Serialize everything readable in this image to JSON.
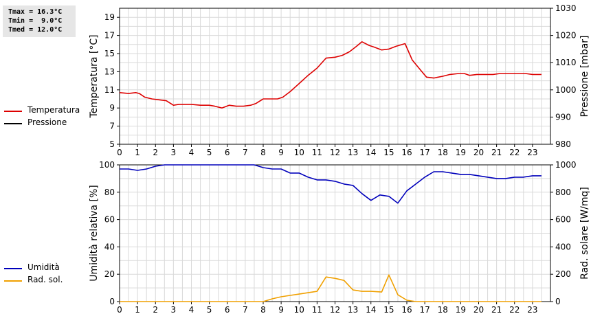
{
  "stats": {
    "tmax": "Tmax = 16.3°C",
    "tmin": "Tmin =  9.0°C",
    "tmed": "Tmed = 12.0°C"
  },
  "legend_top": [
    {
      "label": "Temperatura",
      "color": "#dd0000"
    },
    {
      "label": "Pressione",
      "color": "#000000"
    }
  ],
  "legend_bottom": [
    {
      "label": "Umidità",
      "color": "#0000bb"
    },
    {
      "label": "Rad. sol.",
      "color": "#f0a000"
    }
  ],
  "chart_data": [
    {
      "type": "line",
      "ylabel": "Temperatura [°C]",
      "y2label": "Pressione [mbar]",
      "xlim": [
        0,
        24
      ],
      "ylim": [
        5,
        20
      ],
      "y2lim": [
        980,
        1030
      ],
      "xticks": [
        0,
        1,
        2,
        3,
        4,
        5,
        6,
        7,
        8,
        9,
        10,
        11,
        12,
        13,
        14,
        15,
        16,
        17,
        18,
        19,
        20,
        21,
        22,
        23
      ],
      "yticks": [
        5,
        7,
        9,
        11,
        13,
        15,
        17,
        19
      ],
      "y2ticks": [
        980,
        990,
        1000,
        1010,
        1020,
        1030
      ],
      "grid": true,
      "series": [
        {
          "name": "Temperatura",
          "color": "#dd0000",
          "axis": "left",
          "x": [
            0,
            0.5,
            0.9,
            1.1,
            1.4,
            1.8,
            2.2,
            2.6,
            3.0,
            3.3,
            3.7,
            4.0,
            4.5,
            5.0,
            5.3,
            5.7,
            6.1,
            6.5,
            6.9,
            7.3,
            7.6,
            8.0,
            8.5,
            8.8,
            9.1,
            9.5,
            10.0,
            10.5,
            11.0,
            11.5,
            12.0,
            12.4,
            12.8,
            13.2,
            13.5,
            13.9,
            14.2,
            14.6,
            15.0,
            15.4,
            15.9,
            16.3,
            16.8,
            17.1,
            17.5,
            18.0,
            18.4,
            18.9,
            19.2,
            19.5,
            19.9,
            20.3,
            20.8,
            21.2,
            21.6,
            22.1,
            22.6,
            23.0,
            23.5
          ],
          "y": [
            10.7,
            10.6,
            10.7,
            10.6,
            10.2,
            10.0,
            9.9,
            9.8,
            9.3,
            9.4,
            9.4,
            9.4,
            9.3,
            9.3,
            9.2,
            9.0,
            9.3,
            9.2,
            9.2,
            9.3,
            9.5,
            10.0,
            10.0,
            10.0,
            10.2,
            10.8,
            11.7,
            12.6,
            13.4,
            14.5,
            14.6,
            14.8,
            15.2,
            15.8,
            16.3,
            15.9,
            15.7,
            15.4,
            15.5,
            15.8,
            16.1,
            14.3,
            13.1,
            12.4,
            12.3,
            12.5,
            12.7,
            12.8,
            12.8,
            12.6,
            12.7,
            12.7,
            12.7,
            12.8,
            12.8,
            12.8,
            12.8,
            12.7,
            12.7
          ]
        }
      ]
    },
    {
      "type": "line",
      "ylabel": "Umidità relativa [%]",
      "y2label": "Rad. solare [W/mq]",
      "xlim": [
        0,
        24
      ],
      "ylim": [
        0,
        100
      ],
      "y2lim": [
        0,
        1000
      ],
      "xticks": [
        0,
        1,
        2,
        3,
        4,
        5,
        6,
        7,
        8,
        9,
        10,
        11,
        12,
        13,
        14,
        15,
        16,
        17,
        18,
        19,
        20,
        21,
        22,
        23
      ],
      "yticks": [
        0,
        20,
        40,
        60,
        80,
        100
      ],
      "y2ticks": [
        0,
        200,
        400,
        600,
        800,
        1000
      ],
      "grid": true,
      "series": [
        {
          "name": "Umidità",
          "color": "#0000bb",
          "axis": "left",
          "x": [
            0,
            0.5,
            1.0,
            1.5,
            2.0,
            2.5,
            3.0,
            4.0,
            5.0,
            6.0,
            7.0,
            7.5,
            8.0,
            8.5,
            9.0,
            9.5,
            10.0,
            10.5,
            11.0,
            11.5,
            12.0,
            12.5,
            13.0,
            13.5,
            14.0,
            14.5,
            15.0,
            15.5,
            16.0,
            16.5,
            17.0,
            17.5,
            18.0,
            18.5,
            19.0,
            19.5,
            20.0,
            20.5,
            21.0,
            21.5,
            22.0,
            22.5,
            23.0,
            23.5
          ],
          "y": [
            97,
            97,
            96,
            97,
            99,
            100,
            100,
            100,
            100,
            100,
            100,
            100,
            98,
            97,
            97,
            94,
            94,
            91,
            89,
            89,
            88,
            86,
            85,
            79,
            74,
            78,
            77,
            72,
            81,
            86,
            91,
            95,
            95,
            94,
            93,
            93,
            92,
            91,
            90,
            90,
            91,
            91,
            92,
            92
          ]
        },
        {
          "name": "Rad. sol.",
          "color": "#f0a000",
          "axis": "right",
          "x": [
            0,
            1,
            2,
            3,
            4,
            5,
            6,
            7,
            8.0,
            8.5,
            9.0,
            9.5,
            10.0,
            10.5,
            11.0,
            11.5,
            12.0,
            12.5,
            13.0,
            13.5,
            14.0,
            14.6,
            15.0,
            15.5,
            16.0,
            16.5,
            17,
            18,
            19,
            20,
            21,
            22,
            23,
            23.5
          ],
          "y": [
            0,
            0,
            0,
            0,
            0,
            0,
            0,
            0,
            0,
            20,
            35,
            45,
            55,
            65,
            75,
            180,
            170,
            155,
            85,
            75,
            75,
            70,
            195,
            50,
            10,
            0,
            0,
            0,
            0,
            0,
            0,
            0,
            0,
            0
          ]
        }
      ]
    }
  ]
}
